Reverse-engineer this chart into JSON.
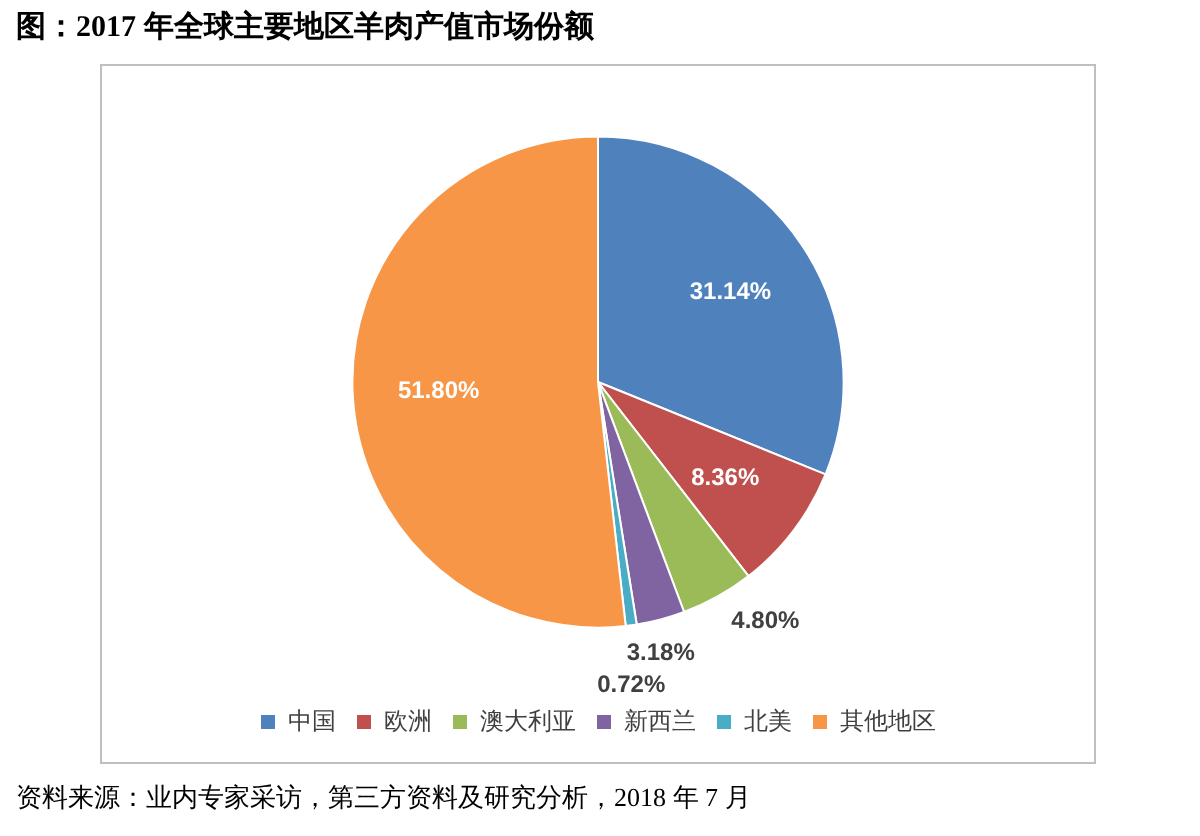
{
  "chart_data": {
    "type": "pie",
    "title": "图：2017 年全球主要地区羊肉产值市场份额",
    "categories": [
      "中国",
      "欧洲",
      "澳大利亚",
      "新西兰",
      "北美",
      "其他地区"
    ],
    "values": [
      31.14,
      8.36,
      4.8,
      3.18,
      0.72,
      51.8
    ],
    "colors": [
      "#4f81bd",
      "#c0504d",
      "#9bbb59",
      "#8064a2",
      "#4bacc6",
      "#f79646"
    ],
    "value_labels": [
      "31.14%",
      "8.36%",
      "4.80%",
      "3.18%",
      "0.72%",
      "51.80%"
    ],
    "legend": "bottom",
    "annotations": [
      "资料来源：业内专家采访，第三方资料及研究分析，2018 年 7 月"
    ]
  }
}
